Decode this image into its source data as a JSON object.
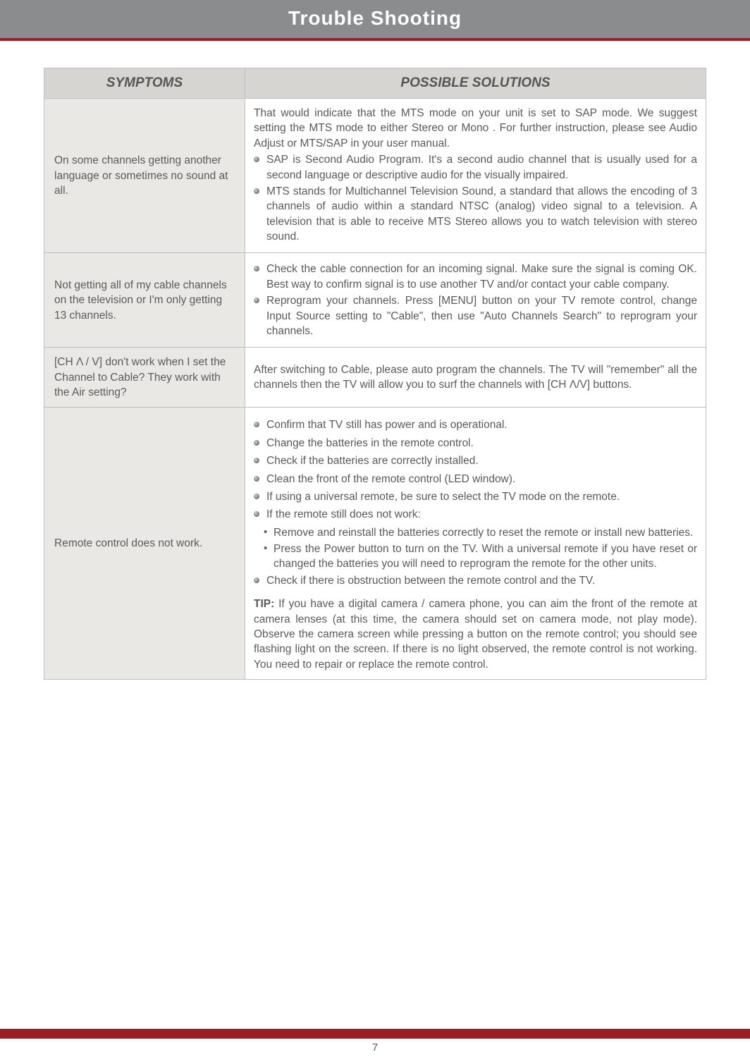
{
  "header": {
    "title": "Trouble Shooting"
  },
  "table": {
    "columns": {
      "symptoms": "SYMPTOMS",
      "solutions": "POSSIBLE SOLUTIONS"
    },
    "rows": [
      {
        "symptom": "On some channels getting another language or sometimes no sound at all.",
        "intro": "That would indicate that the MTS mode on your unit is set to SAP mode. We suggest setting the MTS mode to either Stereo or Mono . For further instruction, please see Audio Adjust or MTS/SAP in your user manual.",
        "bullets": [
          "SAP is Second Audio Program. It's a second audio channel that is usually used for a second language or descriptive audio for the visually impaired.",
          "MTS stands for Multichannel Television Sound, a standard that allows the encoding of 3 channels of audio within a standard NTSC (analog) video signal to a television. A television that is able to receive MTS Stereo allows you to watch television with stereo sound."
        ]
      },
      {
        "symptom": "Not getting all of my cable channels on the television or I'm only getting 13 channels.",
        "bullets": [
          "Check the cable connection for an incoming signal. Make sure the signal is coming OK. Best way to confirm signal is to use another TV and/or contact your cable company.",
          "Reprogram your channels. Press [MENU] button on your TV remote control, change Input Source setting to \"Cable\", then use \"Auto Channels Search\" to reprogram your channels."
        ]
      },
      {
        "symptom": "[CH Λ / V] don't work when I set the Channel to Cable? They work with the Air setting?",
        "plain": "After switching to Cable, please auto program the channels. The TV will \"remember\" all the channels then the TV will allow you to surf the channels with [CH Λ/V] buttons."
      },
      {
        "symptom": "Remote control does not work.",
        "bullets": [
          "Confirm that TV still has power and is operational.",
          "Change the batteries in the remote control.",
          "Check if the batteries are correctly installed.",
          "Clean the front of the remote control (LED window).",
          "If using a universal remote, be sure to select the TV mode on the remote.",
          "If the remote still does not work:"
        ],
        "sub_bullets": [
          "Remove and reinstall the batteries correctly to reset the remote or install new batteries.",
          "Press the Power button to turn on the TV. With a universal remote if you have reset or changed the batteries you will need to reprogram the remote for the other units."
        ],
        "bullets2": [
          "Check if there is obstruction between the remote control and the TV."
        ],
        "tip_label": "TIP:",
        "tip": " If you have a digital camera / camera phone, you can aim the front of the remote at camera lenses (at this time, the camera should set on camera mode, not play mode). Observe the camera screen while pressing a button on the remote control; you should see flashing light on the screen. If there is no light observed, the remote control is not working. You need to repair or replace the remote control."
      }
    ]
  },
  "footer": {
    "page": "7"
  }
}
